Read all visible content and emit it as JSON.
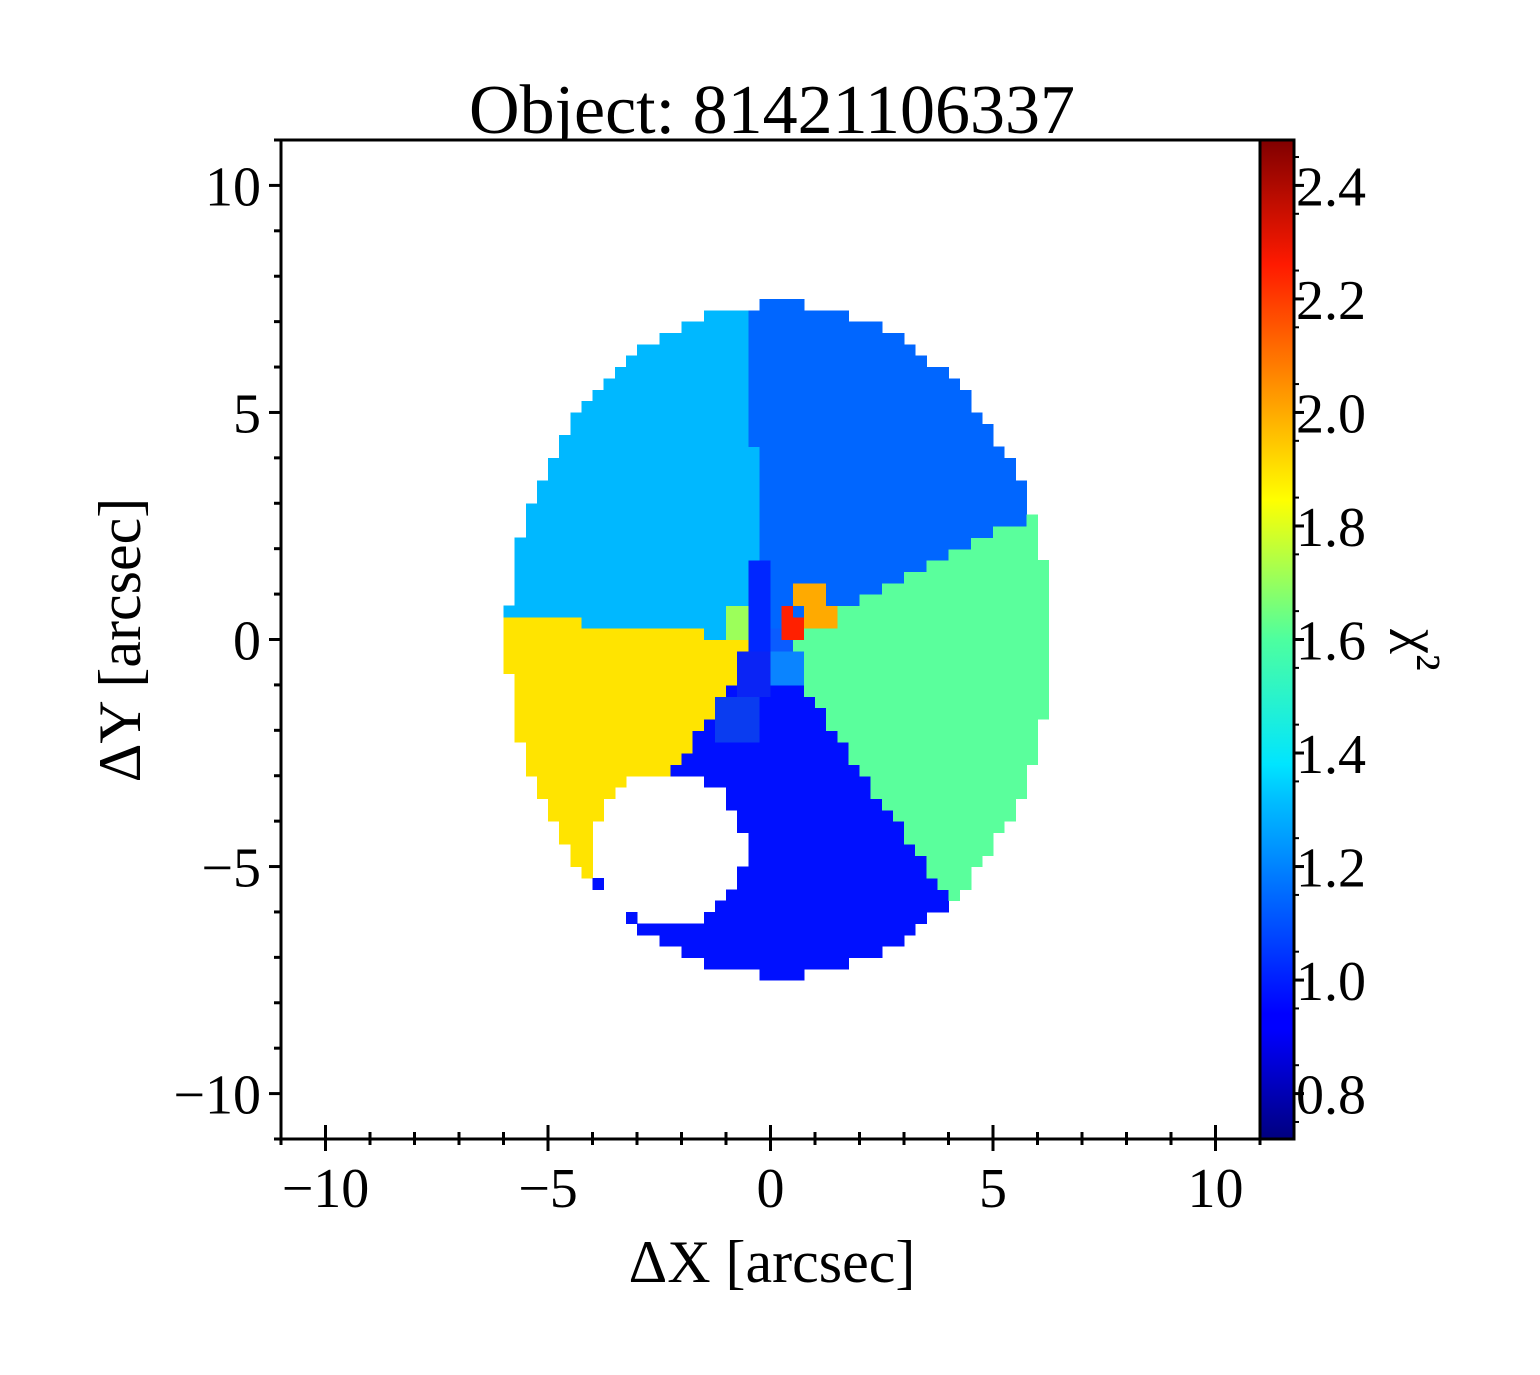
{
  "chart_data": {
    "type": "heatmap",
    "title": "Object: 81421106337",
    "xlabel": "ΔX [arcsec]",
    "ylabel": "ΔY [arcsec]",
    "colorbar_label": "χ²",
    "colormap": "jet",
    "xlim": [
      -11,
      11
    ],
    "ylim": [
      -11,
      11
    ],
    "clim": [
      0.72,
      2.48
    ],
    "xticks": [
      -10,
      -5,
      0,
      5,
      10
    ],
    "xtick_labels": [
      "−10",
      "−5",
      "0",
      "5",
      "10"
    ],
    "yticks": [
      -10,
      -5,
      0,
      5,
      10
    ],
    "ytick_labels": [
      "−10",
      "−5",
      "0",
      "5",
      "10"
    ],
    "colorbar_ticks": [
      0.8,
      1.0,
      1.2,
      1.4,
      1.6,
      1.8,
      2.0,
      2.2,
      2.4
    ],
    "colorbar_tick_labels": [
      "0.8",
      "1.0",
      "1.2",
      "1.4",
      "1.6",
      "1.8",
      "2.0",
      "2.2",
      "2.4"
    ],
    "footprint": {
      "shape": "ellipse",
      "center": [
        0.2,
        0.0
      ],
      "semi_axes": [
        6.1,
        7.4
      ],
      "cell_size": 0.25,
      "masked_hole": {
        "center": [
          -2.3,
          -4.6
        ],
        "radius": 1.7
      }
    },
    "bins": [
      {
        "name": "north",
        "value": 1.15,
        "color": "#0066ff"
      },
      {
        "name": "north-west",
        "value": 1.25,
        "color": "#00b8ff"
      },
      {
        "name": "east",
        "value": 1.58,
        "color": "#5aff9c"
      },
      {
        "name": "west",
        "value": 1.85,
        "color": "#ffe400"
      },
      {
        "name": "south",
        "value": 0.98,
        "color": "#0010ff"
      },
      {
        "name": "south-center",
        "value": 1.05,
        "color": "#0a3cf0"
      },
      {
        "name": "core-north",
        "value": 1.02,
        "color": "#0026ff"
      },
      {
        "name": "core-green",
        "value": 1.72,
        "color": "#9cff5a"
      },
      {
        "name": "core-orange",
        "value": 2.05,
        "color": "#ffaa00"
      },
      {
        "name": "core-red",
        "value": 2.28,
        "color": "#ff2000"
      },
      {
        "name": "core-center",
        "value": 1.12,
        "color": "#0a5cff"
      },
      {
        "name": "core-southwest",
        "value": 1.0,
        "color": "#0a24f5"
      },
      {
        "name": "core-southeast",
        "value": 1.18,
        "color": "#0a84ff"
      }
    ]
  }
}
